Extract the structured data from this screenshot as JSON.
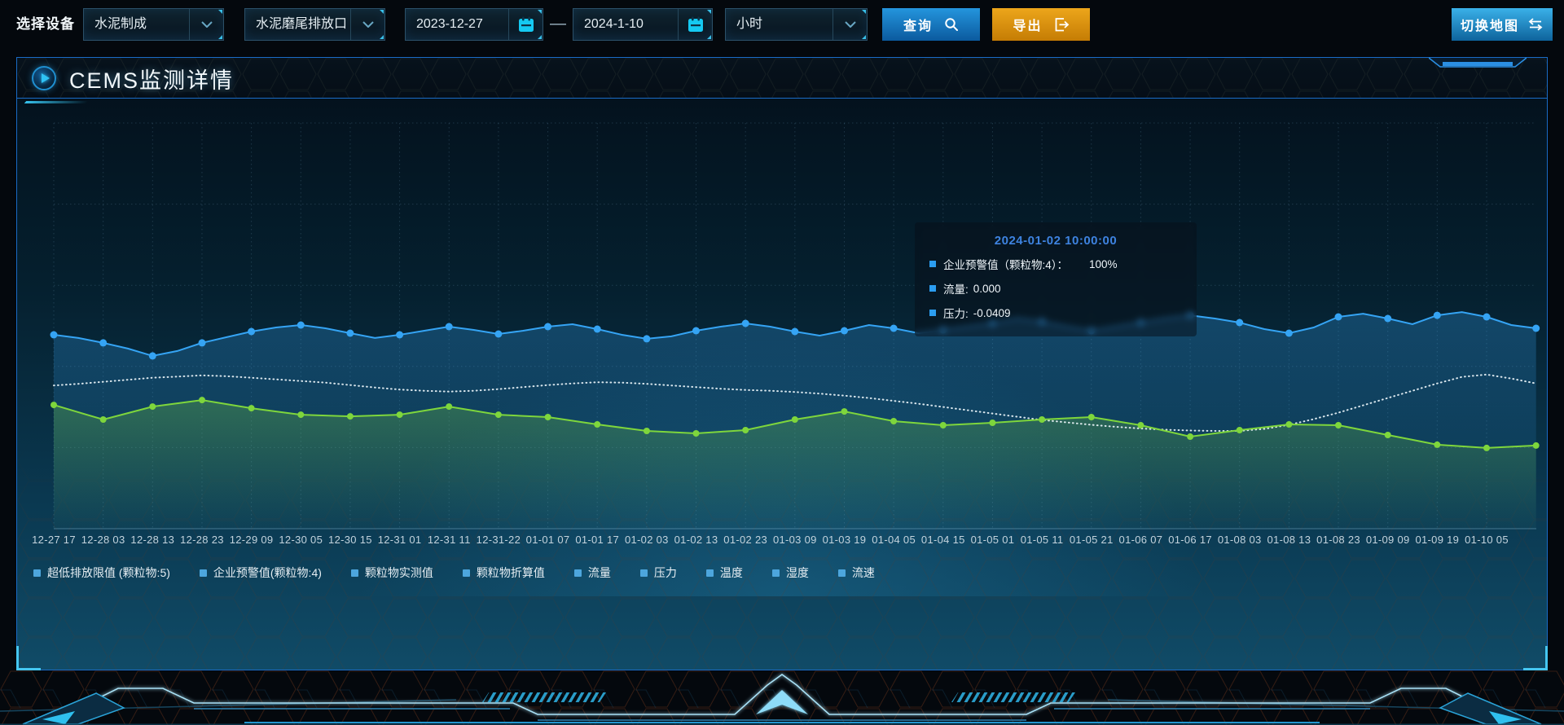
{
  "toolbar": {
    "device_label": "选择设备",
    "process_value": "水泥制成",
    "outlet_value": "水泥磨尾排放口",
    "date_start": "2023-12-27",
    "date_separator": "—",
    "date_end": "2024-1-10",
    "interval_value": "小时",
    "query_label": "查询",
    "export_label": "导出",
    "switch_map_label": "切换地图"
  },
  "panel": {
    "title": "CEMS监测详情"
  },
  "tooltip": {
    "title": "2024-01-02 10:00:00",
    "rows": [
      {
        "label": "企业预警值（颗粒物:4）：",
        "value": "100%"
      },
      {
        "label": "流量:",
        "value": "0.000"
      },
      {
        "label": "压力:",
        "value": "-0.0409"
      }
    ]
  },
  "legend": {
    "items": [
      "超低排放限值 (颗粒物:5)",
      "企业预警值(颗粒物:4)",
      "颗粒物实测值",
      "颗粒物折算值",
      "流量",
      "压力",
      "温度",
      "湿度",
      "流速"
    ],
    "marker_color": "#4da6dd"
  },
  "colors": {
    "accent_blue": "#2196f3",
    "export_orange": "#e39a15",
    "panel_border": "#1a6bc6",
    "tooltip_title": "#3E83E0"
  },
  "chart_data": {
    "type": "line",
    "title": "",
    "xlabel": "",
    "ylabel": "",
    "ylim": [
      0,
      100
    ],
    "grid": "dashed",
    "legend_position": "bottom",
    "points_per_label": 2,
    "marker_every": 2,
    "x_labels": [
      "12-27 17",
      "12-28 03",
      "12-28 13",
      "12-28 23",
      "12-29 09",
      "12-30 05",
      "12-30 15",
      "12-31 01",
      "12-31 11",
      "12-31-22",
      "01-01 07",
      "01-01 17",
      "01-02 03",
      "01-02 13",
      "01-02 23",
      "01-03 09",
      "01-03 19",
      "01-04 05",
      "01-04 15",
      "01-05 01",
      "01-05 11",
      "01-05 21",
      "01-06 07",
      "01-06 17",
      "01-08 03",
      "01-08 13",
      "01-08 23",
      "01-09 09",
      "01-09 19",
      "01-10 05"
    ],
    "series": [
      {
        "name": "颗粒物实测值",
        "color": "#35a4f4",
        "line_style": "solid",
        "markers": true,
        "area": true,
        "values": [
          47.8,
          47.0,
          45.8,
          44.4,
          42.6,
          43.8,
          45.8,
          47.2,
          48.6,
          49.6,
          50.2,
          49.4,
          48.2,
          47.0,
          47.8,
          48.8,
          49.8,
          49.0,
          48.0,
          48.8,
          49.8,
          50.4,
          49.2,
          47.8,
          46.8,
          47.4,
          48.8,
          49.8,
          50.6,
          49.8,
          48.6,
          47.6,
          48.8,
          50.2,
          49.4,
          48.2,
          49.0,
          49.8,
          50.6,
          51.8,
          51.0,
          49.8,
          48.8,
          49.8,
          50.8,
          51.8,
          52.6,
          51.8,
          50.8,
          49.2,
          48.2,
          49.6,
          52.2,
          53.0,
          51.8,
          50.4,
          52.6,
          53.4,
          52.2,
          50.2,
          49.4
        ]
      },
      {
        "name": "颗粒物折算值",
        "color": "#eef7fc",
        "line_style": "dotted",
        "markers": false,
        "area": false,
        "values": [
          35.3,
          35.7,
          36.2,
          36.7,
          37.2,
          37.5,
          37.8,
          37.6,
          37.2,
          36.8,
          36.4,
          36.0,
          35.4,
          34.8,
          34.3,
          34.0,
          33.8,
          34.0,
          34.4,
          34.9,
          35.4,
          35.8,
          36.1,
          36.0,
          35.7,
          35.3,
          34.9,
          34.5,
          34.2,
          34.0,
          33.7,
          33.3,
          32.8,
          32.2,
          31.5,
          30.8,
          30.0,
          29.2,
          28.4,
          27.6,
          26.8,
          26.2,
          25.6,
          25.1,
          24.7,
          24.4,
          24.2,
          24.1,
          24.1,
          24.6,
          25.6,
          27.0,
          28.6,
          30.4,
          32.2,
          34.0,
          35.8,
          37.4,
          38.0,
          37.0,
          35.8
        ]
      },
      {
        "name": "超低排放限值 (颗粒物:5)",
        "color": "#7ed63c",
        "line_style": "solid",
        "markers": true,
        "area": true,
        "values": [
          30.5,
          28.7,
          26.9,
          28.5,
          30.1,
          30.9,
          31.7,
          30.7,
          29.7,
          28.9,
          28.1,
          27.9,
          27.7,
          27.9,
          28.1,
          29.1,
          30.1,
          29.1,
          28.1,
          27.8,
          27.5,
          26.6,
          25.7,
          24.9,
          24.1,
          23.8,
          23.5,
          23.9,
          24.3,
          25.6,
          26.9,
          27.9,
          28.9,
          27.7,
          26.5,
          26.0,
          25.5,
          25.8,
          26.1,
          26.5,
          26.9,
          27.2,
          27.5,
          26.5,
          25.5,
          24.1,
          22.7,
          23.5,
          24.3,
          25.0,
          25.7,
          25.6,
          25.5,
          24.3,
          23.1,
          21.9,
          20.7,
          20.3,
          19.9,
          20.2,
          20.5
        ]
      }
    ]
  }
}
